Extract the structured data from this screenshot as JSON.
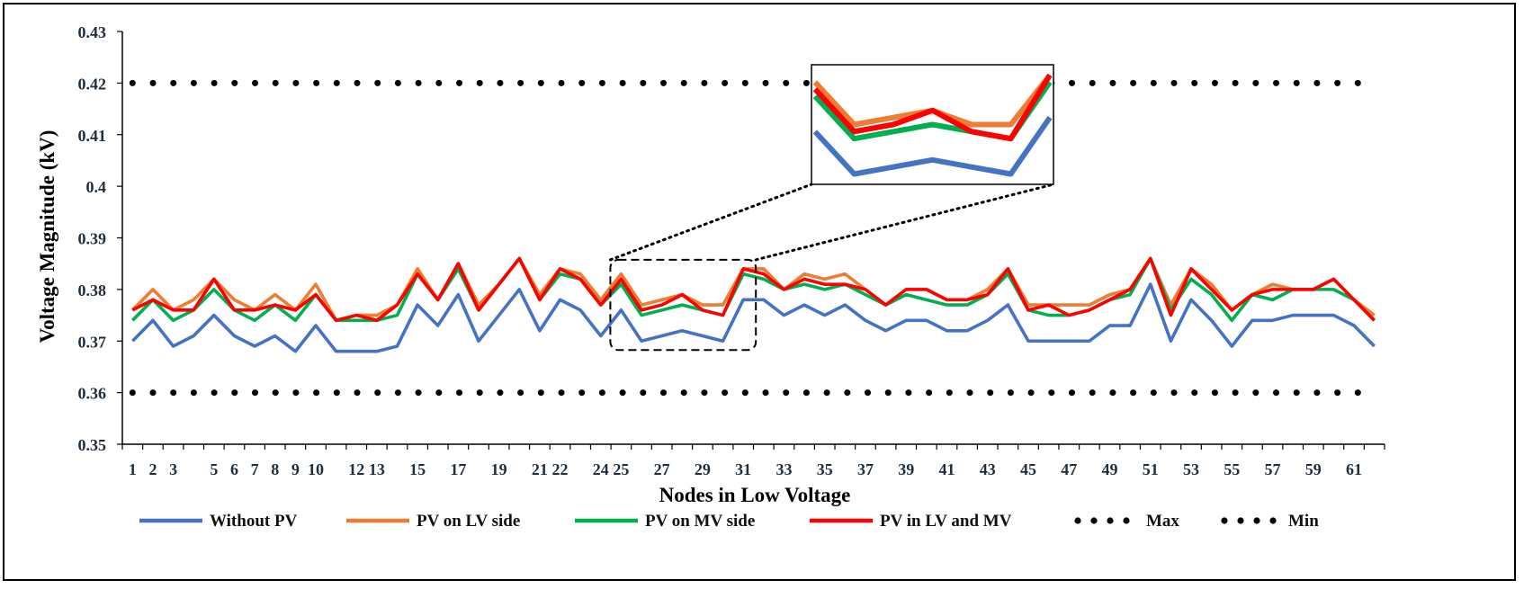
{
  "chart_data": {
    "type": "line",
    "xlabel": "Nodes in Low Voltage",
    "ylabel": "Voltage Magnitude (kV)",
    "ylim": [
      0.35,
      0.43
    ],
    "yticks": [
      "0.35",
      "0.36",
      "0.37",
      "0.38",
      "0.39",
      "0.4",
      "0.41",
      "0.42",
      "0.43"
    ],
    "xtick_labels": [
      "1",
      "2",
      "3",
      "5",
      "6",
      "7",
      "8",
      "9",
      "10",
      "12",
      "13",
      "15",
      "17",
      "19",
      "21",
      "22",
      "24",
      "25",
      "27",
      "29",
      "31",
      "33",
      "35",
      "37",
      "39",
      "41",
      "43",
      "45",
      "47",
      "49",
      "51",
      "53",
      "55",
      "57",
      "59",
      "61"
    ],
    "x_count": 62,
    "grid": false,
    "legend_position": "bottom",
    "inset": {
      "type": "zoom",
      "x_range": [
        25,
        31
      ]
    },
    "series": [
      {
        "name": "Without PV",
        "color": "#4472C4",
        "style": "solid",
        "values": [
          0.37,
          0.374,
          0.369,
          0.371,
          0.375,
          0.371,
          0.369,
          0.371,
          0.368,
          0.373,
          0.368,
          0.368,
          0.368,
          0.369,
          0.377,
          0.373,
          0.379,
          0.37,
          0.375,
          0.38,
          0.372,
          0.378,
          0.376,
          0.371,
          0.376,
          0.37,
          0.371,
          0.372,
          0.371,
          0.37,
          0.378,
          0.378,
          0.375,
          0.377,
          0.375,
          0.377,
          0.374,
          0.372,
          0.374,
          0.374,
          0.372,
          0.372,
          0.374,
          0.377,
          0.37,
          0.37,
          0.37,
          0.37,
          0.373,
          0.373,
          0.381,
          0.37,
          0.378,
          0.374,
          0.369,
          0.374,
          0.374,
          0.375,
          0.375,
          0.375,
          0.373,
          0.369
        ]
      },
      {
        "name": "PV on LV side",
        "color": "#ED7D31",
        "style": "solid",
        "values": [
          0.376,
          0.38,
          0.376,
          0.378,
          0.382,
          0.378,
          0.376,
          0.379,
          0.376,
          0.381,
          0.374,
          0.375,
          0.375,
          0.377,
          0.384,
          0.378,
          0.385,
          0.377,
          0.381,
          0.386,
          0.379,
          0.384,
          0.383,
          0.378,
          0.383,
          0.377,
          0.378,
          0.379,
          0.377,
          0.377,
          0.384,
          0.384,
          0.38,
          0.383,
          0.382,
          0.383,
          0.38,
          0.377,
          0.38,
          0.38,
          0.378,
          0.378,
          0.38,
          0.384,
          0.377,
          0.377,
          0.377,
          0.377,
          0.379,
          0.38,
          0.386,
          0.377,
          0.384,
          0.381,
          0.376,
          0.379,
          0.381,
          0.38,
          0.38,
          0.382,
          0.378,
          0.375
        ]
      },
      {
        "name": "PV on MV side",
        "color": "#00B050",
        "style": "solid",
        "values": [
          0.374,
          0.378,
          0.374,
          0.376,
          0.38,
          0.376,
          0.374,
          0.377,
          0.374,
          0.379,
          0.374,
          0.374,
          0.374,
          0.375,
          0.383,
          0.378,
          0.384,
          0.376,
          0.381,
          0.386,
          0.378,
          0.383,
          0.382,
          0.377,
          0.381,
          0.375,
          0.376,
          0.377,
          0.376,
          0.375,
          0.383,
          0.382,
          0.38,
          0.381,
          0.38,
          0.381,
          0.379,
          0.377,
          0.379,
          0.378,
          0.377,
          0.377,
          0.379,
          0.383,
          0.376,
          0.375,
          0.375,
          0.376,
          0.378,
          0.379,
          0.386,
          0.376,
          0.382,
          0.379,
          0.374,
          0.379,
          0.378,
          0.38,
          0.38,
          0.38,
          0.378,
          0.374
        ]
      },
      {
        "name": "PV in LV and MV",
        "color": "#FF0000",
        "style": "solid",
        "values": [
          0.376,
          0.378,
          0.376,
          0.376,
          0.382,
          0.376,
          0.376,
          0.377,
          0.376,
          0.379,
          0.374,
          0.375,
          0.374,
          0.377,
          0.383,
          0.378,
          0.385,
          0.376,
          0.381,
          0.386,
          0.378,
          0.384,
          0.382,
          0.377,
          0.382,
          0.376,
          0.377,
          0.379,
          0.376,
          0.375,
          0.384,
          0.383,
          0.38,
          0.382,
          0.381,
          0.381,
          0.38,
          0.377,
          0.38,
          0.38,
          0.378,
          0.378,
          0.379,
          0.384,
          0.376,
          0.377,
          0.375,
          0.376,
          0.378,
          0.38,
          0.386,
          0.375,
          0.384,
          0.38,
          0.376,
          0.379,
          0.38,
          0.38,
          0.38,
          0.382,
          0.378,
          0.374
        ]
      },
      {
        "name": "Max",
        "color": "#000000",
        "style": "dotted",
        "values": [
          0.42,
          0.42,
          0.42,
          0.42,
          0.42,
          0.42,
          0.42,
          0.42,
          0.42,
          0.42,
          0.42,
          0.42,
          0.42,
          0.42,
          0.42,
          0.42,
          0.42,
          0.42,
          0.42,
          0.42,
          0.42,
          0.42,
          0.42,
          0.42,
          0.42,
          0.42,
          0.42,
          0.42,
          0.42,
          0.42,
          0.42,
          0.42,
          0.42,
          0.42,
          0.42,
          0.42,
          0.42,
          0.42,
          0.42,
          0.42,
          0.42,
          0.42,
          0.42,
          0.42,
          0.42,
          0.42,
          0.42,
          0.42,
          0.42,
          0.42,
          0.42,
          0.42,
          0.42,
          0.42,
          0.42,
          0.42,
          0.42,
          0.42,
          0.42,
          0.42,
          0.42,
          0.42
        ]
      },
      {
        "name": "Min",
        "color": "#000000",
        "style": "dotted",
        "values": [
          0.36,
          0.36,
          0.36,
          0.36,
          0.36,
          0.36,
          0.36,
          0.36,
          0.36,
          0.36,
          0.36,
          0.36,
          0.36,
          0.36,
          0.36,
          0.36,
          0.36,
          0.36,
          0.36,
          0.36,
          0.36,
          0.36,
          0.36,
          0.36,
          0.36,
          0.36,
          0.36,
          0.36,
          0.36,
          0.36,
          0.36,
          0.36,
          0.36,
          0.36,
          0.36,
          0.36,
          0.36,
          0.36,
          0.36,
          0.36,
          0.36,
          0.36,
          0.36,
          0.36,
          0.36,
          0.36,
          0.36,
          0.36,
          0.36,
          0.36,
          0.36,
          0.36,
          0.36,
          0.36,
          0.36,
          0.36,
          0.36,
          0.36,
          0.36,
          0.36,
          0.36,
          0.36
        ]
      }
    ]
  }
}
